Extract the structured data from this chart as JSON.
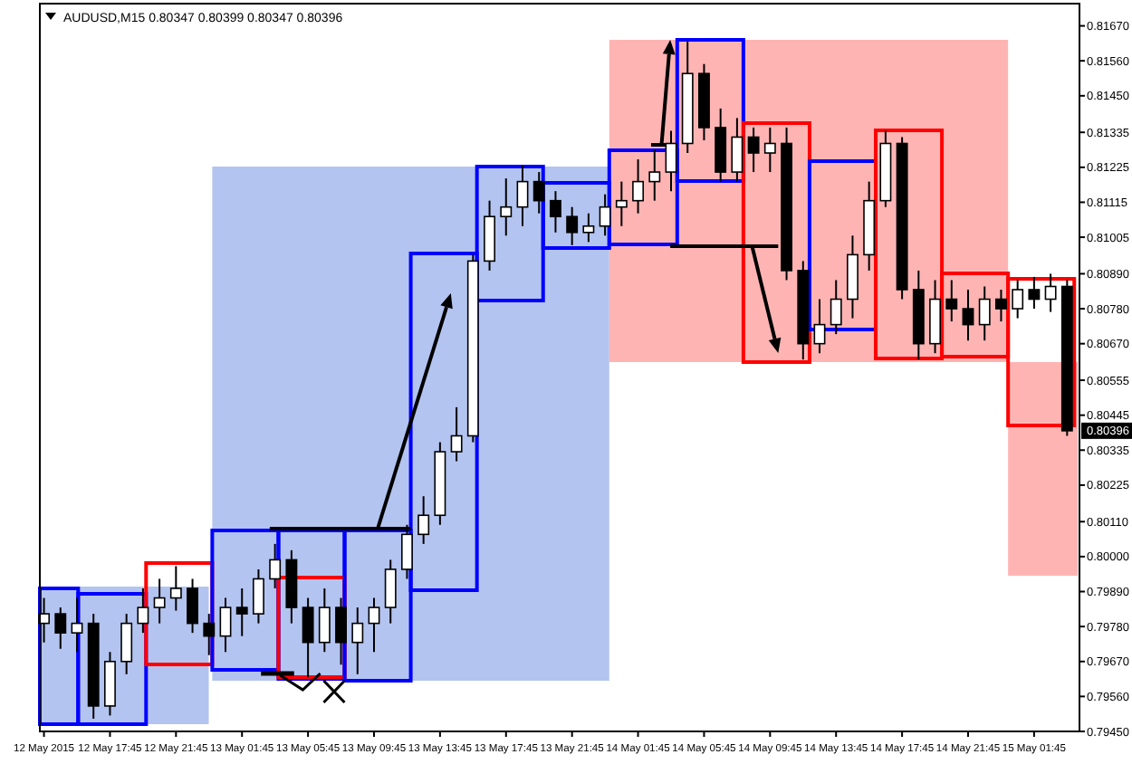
{
  "chart_data": {
    "type": "candlestick",
    "title": "AUDUSD,M15  0.80347 0.80399 0.80347 0.80396",
    "x": [
      "2015-05-12T13:45",
      "2015-05-12T14:45",
      "2015-05-12T15:45",
      "2015-05-12T16:45",
      "2015-05-12T17:45",
      "2015-05-12T18:45",
      "2015-05-12T19:45",
      "2015-05-12T20:45",
      "2015-05-12T21:45",
      "2015-05-12T22:45",
      "2015-05-12T23:45",
      "2015-05-13T00:45",
      "2015-05-13T01:45",
      "2015-05-13T02:45",
      "2015-05-13T03:45",
      "2015-05-13T04:45",
      "2015-05-13T05:45",
      "2015-05-13T06:45",
      "2015-05-13T07:45",
      "2015-05-13T08:45",
      "2015-05-13T09:45",
      "2015-05-13T10:45",
      "2015-05-13T11:45",
      "2015-05-13T12:45",
      "2015-05-13T13:45",
      "2015-05-13T14:45",
      "2015-05-13T15:45",
      "2015-05-13T16:45",
      "2015-05-13T17:45",
      "2015-05-13T18:45",
      "2015-05-13T19:45",
      "2015-05-13T20:45",
      "2015-05-13T21:45",
      "2015-05-13T22:45",
      "2015-05-13T23:45",
      "2015-05-14T00:45",
      "2015-05-14T01:45",
      "2015-05-14T02:45",
      "2015-05-14T03:45",
      "2015-05-14T04:45",
      "2015-05-14T05:45",
      "2015-05-14T06:45",
      "2015-05-14T07:45",
      "2015-05-14T08:45",
      "2015-05-14T09:45",
      "2015-05-14T10:45",
      "2015-05-14T11:45",
      "2015-05-14T12:45",
      "2015-05-14T13:45",
      "2015-05-14T14:45",
      "2015-05-14T15:45",
      "2015-05-14T16:45",
      "2015-05-14T17:45",
      "2015-05-14T18:45",
      "2015-05-14T19:45",
      "2015-05-14T20:45",
      "2015-05-14T21:45",
      "2015-05-14T22:45",
      "2015-05-14T23:45",
      "2015-05-15T00:45",
      "2015-05-15T01:45",
      "2015-05-15T02:45",
      "2015-05-15T03:45"
    ],
    "ohlc": [
      [
        0.7979,
        0.7987,
        0.7973,
        0.7982
      ],
      [
        0.7982,
        0.7984,
        0.7971,
        0.7976
      ],
      [
        0.7976,
        0.7987,
        0.797,
        0.7979
      ],
      [
        0.7979,
        0.7982,
        0.7949,
        0.7953
      ],
      [
        0.7953,
        0.797,
        0.795,
        0.7967
      ],
      [
        0.7967,
        0.7982,
        0.7963,
        0.7979
      ],
      [
        0.7979,
        0.799,
        0.7976,
        0.7984
      ],
      [
        0.7984,
        0.7993,
        0.7979,
        0.7987
      ],
      [
        0.7987,
        0.7997,
        0.7983,
        0.799
      ],
      [
        0.799,
        0.7993,
        0.7976,
        0.7979
      ],
      [
        0.7979,
        0.7982,
        0.7969,
        0.7975
      ],
      [
        0.7975,
        0.7987,
        0.797,
        0.7984
      ],
      [
        0.7984,
        0.799,
        0.7975,
        0.7982
      ],
      [
        0.7982,
        0.7996,
        0.7979,
        0.7993
      ],
      [
        0.7993,
        0.8004,
        0.799,
        0.7999
      ],
      [
        0.7999,
        0.8002,
        0.7979,
        0.7984
      ],
      [
        0.7984,
        0.7987,
        0.7962,
        0.7973
      ],
      [
        0.7973,
        0.799,
        0.797,
        0.7984
      ],
      [
        0.7984,
        0.7987,
        0.7966,
        0.7973
      ],
      [
        0.7973,
        0.7984,
        0.7963,
        0.7979
      ],
      [
        0.7979,
        0.7987,
        0.797,
        0.7984
      ],
      [
        0.7984,
        0.7999,
        0.7979,
        0.7996
      ],
      [
        0.7996,
        0.801,
        0.7993,
        0.8007
      ],
      [
        0.8007,
        0.8019,
        0.8004,
        0.8013
      ],
      [
        0.8013,
        0.8036,
        0.801,
        0.8033
      ],
      [
        0.8033,
        0.8047,
        0.803,
        0.8038
      ],
      [
        0.8038,
        0.8095,
        0.8036,
        0.8093
      ],
      [
        0.8093,
        0.8112,
        0.809,
        0.8107
      ],
      [
        0.8107,
        0.8119,
        0.8101,
        0.811
      ],
      [
        0.811,
        0.8123,
        0.8104,
        0.8118
      ],
      [
        0.8118,
        0.8121,
        0.8108,
        0.8112
      ],
      [
        0.8112,
        0.8115,
        0.8102,
        0.8107
      ],
      [
        0.8107,
        0.811,
        0.8098,
        0.8102
      ],
      [
        0.8102,
        0.8108,
        0.8099,
        0.8104
      ],
      [
        0.8104,
        0.8114,
        0.8101,
        0.811
      ],
      [
        0.811,
        0.8118,
        0.8104,
        0.8112
      ],
      [
        0.8112,
        0.8125,
        0.8108,
        0.8118
      ],
      [
        0.8118,
        0.8128,
        0.8112,
        0.8121
      ],
      [
        0.8121,
        0.8134,
        0.8115,
        0.813
      ],
      [
        0.813,
        0.8162,
        0.8127,
        0.8152
      ],
      [
        0.8152,
        0.8155,
        0.8131,
        0.8135
      ],
      [
        0.8135,
        0.8141,
        0.8118,
        0.8121
      ],
      [
        0.8121,
        0.8138,
        0.8118,
        0.8132
      ],
      [
        0.8132,
        0.8135,
        0.8121,
        0.8127
      ],
      [
        0.8127,
        0.8135,
        0.8121,
        0.813
      ],
      [
        0.813,
        0.8135,
        0.8087,
        0.809
      ],
      [
        0.809,
        0.8093,
        0.8062,
        0.8067
      ],
      [
        0.8067,
        0.8081,
        0.8064,
        0.8073
      ],
      [
        0.8073,
        0.8087,
        0.807,
        0.8081
      ],
      [
        0.8081,
        0.8101,
        0.8075,
        0.8095
      ],
      [
        0.8095,
        0.8118,
        0.809,
        0.8112
      ],
      [
        0.8112,
        0.8134,
        0.811,
        0.813
      ],
      [
        0.813,
        0.8132,
        0.8081,
        0.8084
      ],
      [
        0.8084,
        0.809,
        0.8062,
        0.8067
      ],
      [
        0.8067,
        0.8087,
        0.8064,
        0.8081
      ],
      [
        0.8081,
        0.8087,
        0.8074,
        0.8078
      ],
      [
        0.8078,
        0.8084,
        0.8068,
        0.8073
      ],
      [
        0.8073,
        0.8085,
        0.8068,
        0.8081
      ],
      [
        0.8081,
        0.8084,
        0.8074,
        0.8078
      ],
      [
        0.8078,
        0.8087,
        0.8075,
        0.8084
      ],
      [
        0.8084,
        0.8088,
        0.8078,
        0.8081
      ],
      [
        0.8081,
        0.8089,
        0.8077,
        0.8085
      ],
      [
        0.8085,
        0.8087,
        0.8038,
        0.80396
      ]
    ],
    "xlim": [
      "2015-05-12T13:30",
      "2015-05-15T04:30"
    ],
    "xticks": [
      {
        "value": "2015-05-12T13:45",
        "label": "12 May 2015"
      },
      {
        "value": "2015-05-12T17:45",
        "label": "12 May 17:45"
      },
      {
        "value": "2015-05-12T21:45",
        "label": "12 May 21:45"
      },
      {
        "value": "2015-05-13T01:45",
        "label": "13 May 01:45"
      },
      {
        "value": "2015-05-13T05:45",
        "label": "13 May 05:45"
      },
      {
        "value": "2015-05-13T09:45",
        "label": "13 May 09:45"
      },
      {
        "value": "2015-05-13T13:45",
        "label": "13 May 13:45"
      },
      {
        "value": "2015-05-13T17:45",
        "label": "13 May 17:45"
      },
      {
        "value": "2015-05-13T21:45",
        "label": "13 May 21:45"
      },
      {
        "value": "2015-05-14T01:45",
        "label": "14 May 01:45"
      },
      {
        "value": "2015-05-14T05:45",
        "label": "14 May 05:45"
      },
      {
        "value": "2015-05-14T09:45",
        "label": "14 May 09:45"
      },
      {
        "value": "2015-05-14T13:45",
        "label": "14 May 13:45"
      },
      {
        "value": "2015-05-14T17:45",
        "label": "14 May 17:45"
      },
      {
        "value": "2015-05-14T21:45",
        "label": "14 May 21:45"
      },
      {
        "value": "2015-05-15T01:45",
        "label": "15 May 01:45"
      }
    ],
    "ylim": [
      0.7945,
      0.8174
    ],
    "yticks": [
      {
        "value": 0.8167,
        "label": "0.81670"
      },
      {
        "value": 0.8156,
        "label": "0.81560"
      },
      {
        "value": 0.8145,
        "label": "0.81450"
      },
      {
        "value": 0.81335,
        "label": "0.81335"
      },
      {
        "value": 0.81225,
        "label": "0.81225"
      },
      {
        "value": 0.81115,
        "label": "0.81115"
      },
      {
        "value": 0.81005,
        "label": "0.81005"
      },
      {
        "value": 0.8089,
        "label": "0.80890"
      },
      {
        "value": 0.8078,
        "label": "0.80780"
      },
      {
        "value": 0.8067,
        "label": "0.80670"
      },
      {
        "value": 0.80555,
        "label": "0.80555"
      },
      {
        "value": 0.80445,
        "label": "0.80445"
      },
      {
        "value": 0.80335,
        "label": "0.80335"
      },
      {
        "value": 0.80225,
        "label": "0.80225"
      },
      {
        "value": 0.8011,
        "label": "0.80110"
      },
      {
        "value": 0.8,
        "label": "0.80000"
      },
      {
        "value": 0.7989,
        "label": "0.79890"
      },
      {
        "value": 0.7978,
        "label": "0.79780"
      },
      {
        "value": 0.7967,
        "label": "0.79670"
      },
      {
        "value": 0.7956,
        "label": "0.79560"
      },
      {
        "value": 0.7945,
        "label": "0.79450"
      }
    ],
    "annotations": [
      "0.80396"
    ]
  }
}
